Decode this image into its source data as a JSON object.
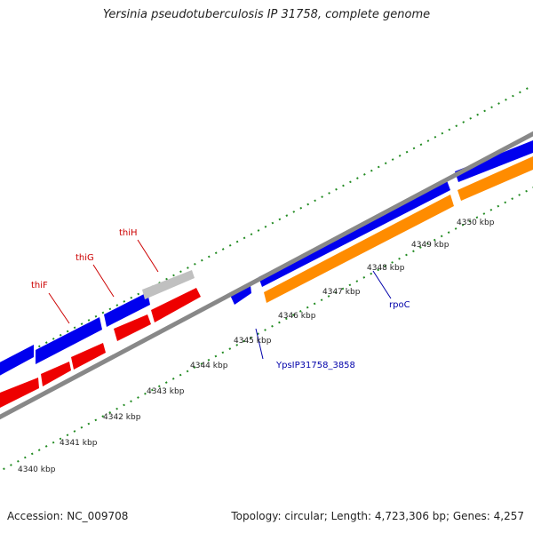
{
  "title": "Yersinia pseudotuberculosis IP 31758, complete genome",
  "footer": {
    "accession": "Accession: NC_009708",
    "summary": "Topology: circular; Length: 4,723,306 bp; Genes: 4,257"
  },
  "colors": {
    "cds_forward": "#0000ee",
    "cds_reverse": "#ee0000",
    "rna_gene": "#ff8c00",
    "pseudo_gene": "#c0c0c0",
    "backbone": "#888888",
    "gc_ticks": "#228b22",
    "label_gene_reverse": "#cc0000",
    "label_gene_forward": "#0000aa",
    "tick_label": "#222222"
  },
  "scale": {
    "unit": "kbp",
    "ticks": [
      {
        "label": "4340 kbp"
      },
      {
        "label": "4341 kbp"
      },
      {
        "label": "4342 kbp"
      },
      {
        "label": "4343 kbp"
      },
      {
        "label": "4344 kbp"
      },
      {
        "label": "4345 kbp"
      },
      {
        "label": "4346 kbp"
      },
      {
        "label": "4347 kbp"
      },
      {
        "label": "4348 kbp"
      },
      {
        "label": "4349 kbp"
      },
      {
        "label": "4350 kbp"
      }
    ]
  },
  "gene_labels": [
    {
      "name": "thiF",
      "strand": "reverse"
    },
    {
      "name": "thiG",
      "strand": "reverse"
    },
    {
      "name": "thiH",
      "strand": "reverse"
    },
    {
      "name": "YpsIP31758_3858",
      "strand": "forward"
    },
    {
      "name": "rpoC",
      "strand": "forward"
    }
  ]
}
